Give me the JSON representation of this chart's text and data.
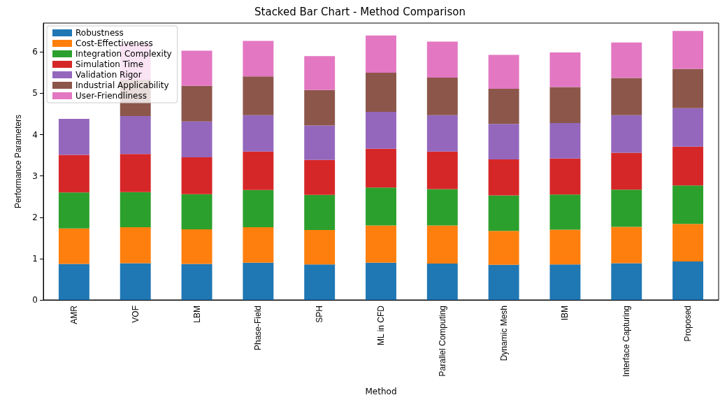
{
  "chart_data": {
    "type": "bar",
    "title": "Stacked Bar Chart - Method Comparison",
    "xlabel": "Method",
    "ylabel": "Performance Parameters",
    "categories": [
      "AMR",
      "VOF",
      "LBM",
      "Phase-Field",
      "SPH",
      "ML in CFD",
      "Parallel Computing",
      "Dynamic Mesh",
      "IBM",
      "Interface Capturing",
      "Proposed"
    ],
    "stacked": true,
    "series": [
      {
        "name": "Robustness",
        "color": "#1f77b4",
        "values": [
          0.87,
          0.89,
          0.87,
          0.9,
          0.86,
          0.9,
          0.88,
          0.85,
          0.86,
          0.89,
          0.93
        ]
      },
      {
        "name": "Cost-Effectiveness",
        "color": "#ff7f0e",
        "values": [
          0.86,
          0.87,
          0.84,
          0.86,
          0.83,
          0.9,
          0.92,
          0.82,
          0.84,
          0.88,
          0.91
        ]
      },
      {
        "name": "Integration Complexity",
        "color": "#2ca02c",
        "values": [
          0.87,
          0.85,
          0.85,
          0.9,
          0.85,
          0.92,
          0.88,
          0.86,
          0.85,
          0.9,
          0.93
        ]
      },
      {
        "name": "Simulation Time",
        "color": "#d62728",
        "values": [
          0.91,
          0.92,
          0.89,
          0.93,
          0.85,
          0.94,
          0.91,
          0.87,
          0.87,
          0.89,
          0.94
        ]
      },
      {
        "name": "Validation Rigor",
        "color": "#9467bd",
        "values": [
          0.87,
          0.92,
          0.87,
          0.88,
          0.83,
          0.89,
          0.88,
          0.86,
          0.86,
          0.91,
          0.93
        ]
      },
      {
        "name": "Industrial Applicability",
        "color": "#8c564b",
        "values": [
          null,
          0.88,
          0.86,
          0.94,
          0.86,
          0.95,
          0.91,
          0.85,
          0.87,
          0.9,
          0.95
        ]
      },
      {
        "name": "User-Friendliness",
        "color": "#e377c2",
        "values": [
          null,
          0.87,
          0.85,
          0.86,
          0.82,
          0.9,
          0.87,
          0.82,
          0.84,
          0.86,
          0.92
        ]
      }
    ],
    "ylim": [
      0,
      6.7
    ],
    "yticks": [
      0,
      1,
      2,
      3,
      4,
      5,
      6
    ],
    "grid": false,
    "legend": "top left"
  }
}
